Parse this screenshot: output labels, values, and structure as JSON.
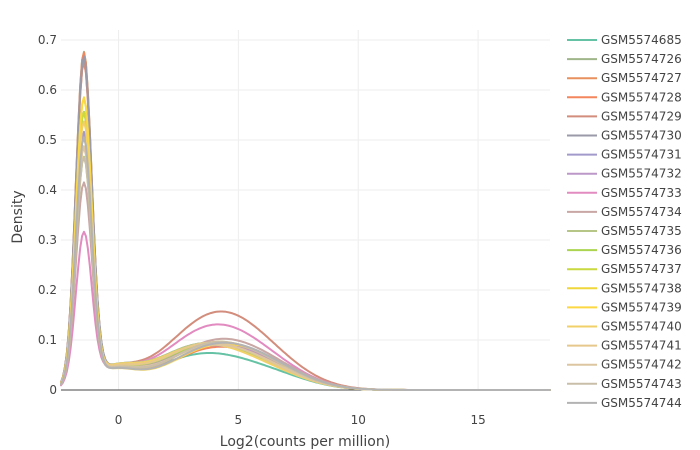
{
  "chart_data": {
    "type": "line",
    "title": "",
    "xlabel": "Log2(counts per million)",
    "ylabel": "Density",
    "xlim": [
      -2.4,
      18
    ],
    "ylim": [
      0,
      0.72
    ],
    "xticks": [
      0,
      5,
      10,
      15
    ],
    "yticks": [
      0,
      0.1,
      0.2,
      0.3,
      0.4,
      0.5,
      0.6,
      0.7
    ],
    "grid": true,
    "legend_position": "right",
    "series": [
      {
        "name": "GSM5574685",
        "color": "#66c2a5",
        "peak": 0.57,
        "bump": 0.07
      },
      {
        "name": "GSM5574726",
        "color": "#9fb58a",
        "peak": 0.69,
        "bump": 0.085
      },
      {
        "name": "GSM5574727",
        "color": "#e8915f",
        "peak": 0.67,
        "bump": 0.09
      },
      {
        "name": "GSM5574728",
        "color": "#f4865d",
        "peak": 0.69,
        "bump": 0.08
      },
      {
        "name": "GSM5574729",
        "color": "#d38d7c",
        "peak": 0.67,
        "bump": 0.15
      },
      {
        "name": "GSM5574730",
        "color": "#9a9aa8",
        "peak": 0.68,
        "bump": 0.09
      },
      {
        "name": "GSM5574731",
        "color": "#a39acc",
        "peak": 0.53,
        "bump": 0.085
      },
      {
        "name": "GSM5574732",
        "color": "#bc98c8",
        "peak": 0.52,
        "bump": 0.09
      },
      {
        "name": "GSM5574733",
        "color": "#e18bc0",
        "peak": 0.33,
        "bump": 0.125
      },
      {
        "name": "GSM5574734",
        "color": "#c8a7a4",
        "peak": 0.43,
        "bump": 0.095
      },
      {
        "name": "GSM5574735",
        "color": "#b6c686",
        "peak": 0.5,
        "bump": 0.09
      },
      {
        "name": "GSM5574736",
        "color": "#acd451",
        "peak": 0.48,
        "bump": 0.088
      },
      {
        "name": "GSM5574737",
        "color": "#c9d93f",
        "peak": 0.57,
        "bump": 0.085
      },
      {
        "name": "GSM5574738",
        "color": "#efd73b",
        "peak": 0.6,
        "bump": 0.09
      },
      {
        "name": "GSM5574739",
        "color": "#fcd843",
        "peak": 0.6,
        "bump": 0.085
      },
      {
        "name": "GSM5574740",
        "color": "#f1d06a",
        "peak": 0.55,
        "bump": 0.088
      },
      {
        "name": "GSM5574741",
        "color": "#e6c88c",
        "peak": 0.5,
        "bump": 0.09
      },
      {
        "name": "GSM5574742",
        "color": "#dcc5a0",
        "peak": 0.5,
        "bump": 0.085
      },
      {
        "name": "GSM5574743",
        "color": "#c9bea8",
        "peak": 0.48,
        "bump": 0.09
      },
      {
        "name": "GSM5574744",
        "color": "#b3b3b3",
        "peak": 0.52,
        "bump": 0.087
      }
    ]
  }
}
